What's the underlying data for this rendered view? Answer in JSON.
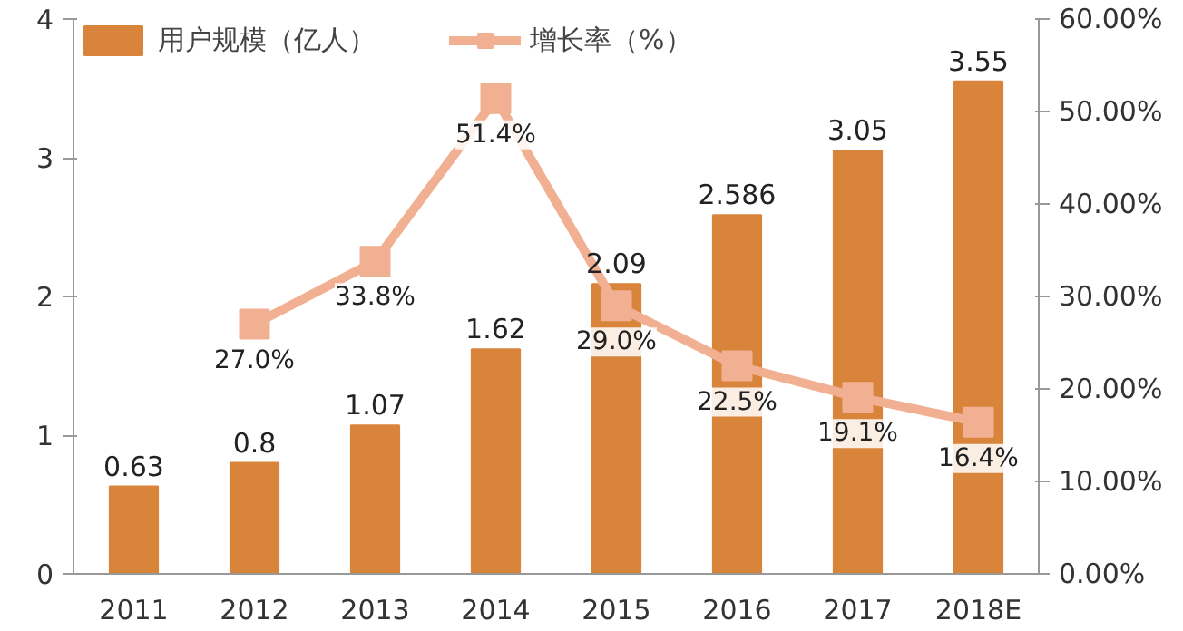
{
  "chart_data": {
    "type": "bar",
    "categories": [
      "2011",
      "2012",
      "2013",
      "2014",
      "2015",
      "2016",
      "2017",
      "2018E"
    ],
    "series": [
      {
        "name": "用户规模（亿人）",
        "color": "#d9843b",
        "values": [
          0.63,
          0.8,
          1.07,
          1.62,
          2.09,
          2.586,
          3.05,
          3.55
        ],
        "value_labels": [
          "0.63",
          "0.8",
          "1.07",
          "1.62",
          "2.09",
          "2.586",
          "3.05",
          "3.55"
        ]
      },
      {
        "name": "增长率（%）",
        "type": "line",
        "axis": "y2",
        "color": "#f2b093",
        "values": [
          null,
          27.0,
          33.8,
          51.4,
          29.0,
          22.5,
          19.1,
          16.4
        ],
        "value_labels": [
          null,
          "27.0%",
          "33.8%",
          "51.4%",
          "29.0%",
          "22.5%",
          "19.1%",
          "16.4%"
        ]
      }
    ],
    "ylim": [
      0,
      4
    ],
    "yticks": [
      0,
      1,
      2,
      3,
      4
    ],
    "y2lim": [
      0,
      60
    ],
    "y2ticks": [
      {
        "value": 0,
        "label": "0.00%"
      },
      {
        "value": 10,
        "label": "10.00%"
      },
      {
        "value": 20,
        "label": "20.00%"
      },
      {
        "value": 30,
        "label": "30.00%"
      },
      {
        "value": 40,
        "label": "40.00%"
      },
      {
        "value": 50,
        "label": "50.00%"
      },
      {
        "value": 60,
        "label": "60.00%"
      }
    ],
    "marker": "square",
    "legend": "top",
    "grid": false
  }
}
